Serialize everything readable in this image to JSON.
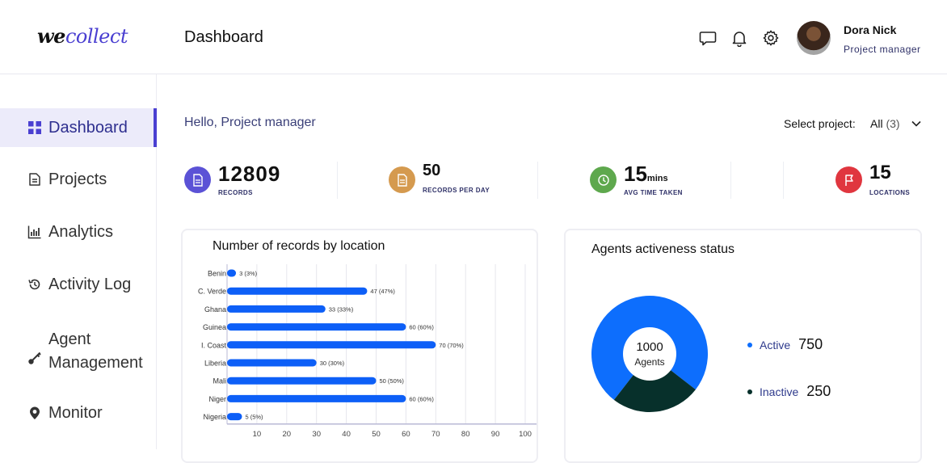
{
  "app": {
    "logo_we": "we",
    "logo_collect": "collect",
    "page_title": "Dashboard"
  },
  "header": {
    "icons": [
      "chat-icon",
      "bell-icon",
      "gear-icon"
    ],
    "user": {
      "name": "Dora Nick",
      "role": "Project manager"
    }
  },
  "sidebar": {
    "items": [
      {
        "label": "Dashboard",
        "icon": "grid-icon",
        "active": true
      },
      {
        "label": "Projects",
        "icon": "document-icon"
      },
      {
        "label": "Analytics",
        "icon": "bar-chart-icon"
      },
      {
        "label": "Activity Log",
        "icon": "history-icon"
      },
      {
        "label": "Agent Management",
        "icon": "key-icon"
      },
      {
        "label": "Monitor",
        "icon": "location-pin-icon"
      }
    ]
  },
  "main": {
    "greeting": "Hello, Project manager",
    "select_label": "Select project:",
    "select_value": "All",
    "select_count": "(3)"
  },
  "stats": [
    {
      "value": "12809",
      "unit": "",
      "label": "RECORDS",
      "icon": "document-icon",
      "color": "#5b52d6"
    },
    {
      "value": "50",
      "unit": "",
      "label": "RECORDS PER DAY",
      "icon": "document-icon",
      "color": "#d59a4f"
    },
    {
      "value": "15",
      "unit": "mins",
      "label": "AVG TIME TAKEN",
      "icon": "clock-icon",
      "color": "#5ea84d"
    },
    {
      "value": "15",
      "unit": "",
      "label": "LOCATIONS",
      "icon": "flag-icon",
      "color": "#e0363f"
    }
  ],
  "colors": {
    "accent": "#4a3fd1",
    "bar": "#0d5ff7",
    "active": "#0d6efd",
    "inactive": "#07302b"
  },
  "chart_data": [
    {
      "type": "bar",
      "orientation": "horizontal",
      "title": "Number of records by location",
      "categories": [
        "Benin",
        "C. Verde",
        "Ghana",
        "Guinea",
        "I. Coast",
        "Liberia",
        "Mali",
        "Niger",
        "Nigeria"
      ],
      "values": [
        3,
        47,
        33,
        60,
        70,
        30,
        50,
        60,
        5
      ],
      "data_labels": [
        "3 (3%)",
        "47 (47%)",
        "33 (33%)",
        "60 (60%)",
        "70 (70%)",
        "30 (30%)",
        "50 (50%)",
        "60 (60%)",
        "5 (5%)"
      ],
      "xticks": [
        10,
        20,
        30,
        40,
        50,
        60,
        70,
        80,
        90,
        100
      ],
      "xlim": [
        0,
        100
      ],
      "grid": true
    },
    {
      "type": "pie",
      "title": "Agents activeness status",
      "center_value": "1000",
      "center_label": "Agents",
      "series": [
        {
          "name": "Active",
          "value": 750
        },
        {
          "name": "Inactive",
          "value": 250
        }
      ]
    }
  ]
}
